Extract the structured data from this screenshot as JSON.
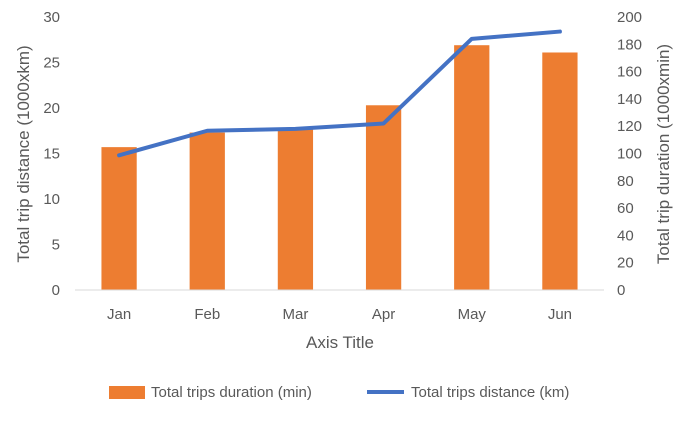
{
  "chart_data": {
    "type": "bar",
    "categories": [
      "Jan",
      "Feb",
      "Mar",
      "Apr",
      "May",
      "Jun"
    ],
    "series": [
      {
        "name": "Total trips duration (min)",
        "type": "bar",
        "axis": "left",
        "color": "#ED7D31",
        "values": [
          15.7,
          17.3,
          17.7,
          20.3,
          26.9,
          26.1
        ]
      },
      {
        "name": "Total trips distance (km)",
        "type": "line",
        "axis": "left",
        "color": "#4472C4",
        "values": [
          14.8,
          17.5,
          17.7,
          18.3,
          27.6,
          28.4
        ]
      }
    ],
    "xlabel": "Axis Title",
    "ylabel": "Total trip distance (1000xkm)",
    "ylabel_right": "Total trip duration (1000xmin)",
    "ylim": [
      0,
      30
    ],
    "ylim_right": [
      0,
      200
    ],
    "yticks": [
      "0",
      "5",
      "10",
      "15",
      "20",
      "25",
      "30"
    ],
    "yticks_right": [
      "0",
      "20",
      "40",
      "60",
      "80",
      "100",
      "120",
      "140",
      "160",
      "180",
      "200"
    ],
    "grid": false,
    "legend": "bottom"
  }
}
